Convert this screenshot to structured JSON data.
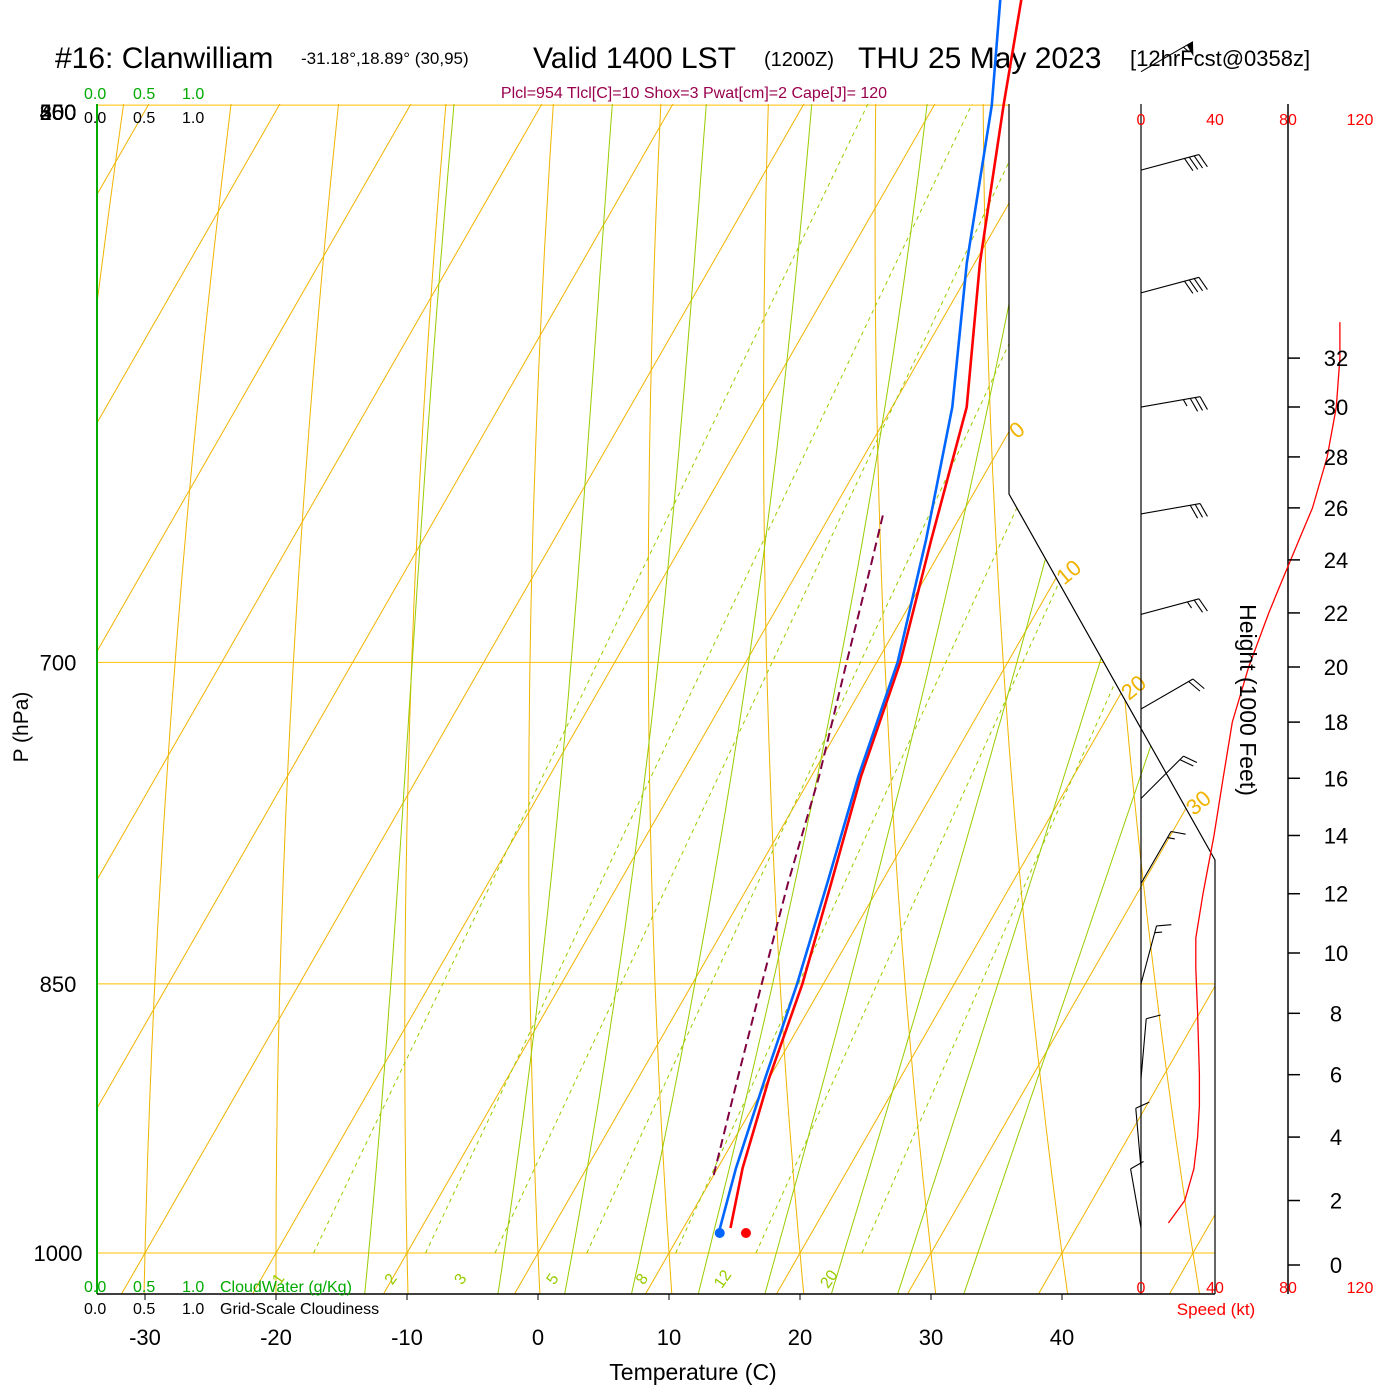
{
  "header": {
    "station": "#16: Clanwilliam",
    "coords": "-31.18°,18.89° (30,95)",
    "valid": "Valid 1400 LST",
    "zulu": "(1200Z)",
    "date": "THU 25 May 2023",
    "forecast": "[12hrFcst@0358z]"
  },
  "indices": "Plcl=954 Tlcl[C]=10 Shox=3 Pwat[cm]=2 Cape[J]= 120",
  "scales": {
    "cloudwater_ticks_top": [
      "0.0",
      "0.5",
      "1.0"
    ],
    "cloudiness_ticks_top": [
      "0.0",
      "0.5",
      "1.0"
    ],
    "cloudwater_ticks_bottom": [
      "0.0",
      "0.5",
      "1.0"
    ],
    "cloudiness_ticks_bottom": [
      "0.0",
      "0.5",
      "1.0"
    ],
    "cloudwater_label": "CloudWater (g/Kg)",
    "cloudiness_label": "Grid-Scale Cloudiness",
    "speed_ticks": [
      "0",
      "40",
      "80",
      "120"
    ],
    "speed_label": "Speed (kt)"
  },
  "colors": {
    "isobar": "#ffbf00",
    "isotherm": "#f0b400",
    "dry_adiabat": "#f0b400",
    "moist_adiabat": "#99cc00",
    "mixing_ratio": "#99cc00",
    "temperature": "#ff0000",
    "dewpoint": "#0066ff",
    "parcel": "#800040",
    "cloudwater": "#00aa00",
    "speed": "#ff0000",
    "indices": "#99004d"
  },
  "chart_data": {
    "type": "skew-t",
    "xlabel": "Temperature (C)",
    "ylabel": "P (hPa)",
    "y2label": "Height (1000 Feet)",
    "x_ticks": [
      -30,
      -20,
      -10,
      0,
      10,
      20,
      30,
      40
    ],
    "pressure_ticks": [
      250,
      300,
      400,
      500,
      700,
      850,
      1000
    ],
    "height_ticks_kft": [
      0,
      2,
      4,
      6,
      8,
      10,
      12,
      14,
      16,
      18,
      20,
      22,
      24,
      26,
      28,
      30,
      32
    ],
    "isotherm_labels": [
      -30,
      -20,
      -10,
      0,
      10,
      20,
      30
    ],
    "mixing_ratio_labels": [
      1,
      2,
      3,
      5,
      8,
      12,
      20
    ],
    "temperature_profile": [
      {
        "p": 985,
        "t": 13.6
      },
      {
        "p": 950,
        "t": 11.9
      },
      {
        "p": 900,
        "t": 10.0
      },
      {
        "p": 850,
        "t": 8.4
      },
      {
        "p": 800,
        "t": 6.2
      },
      {
        "p": 750,
        "t": 3.8
      },
      {
        "p": 700,
        "t": 1.8
      },
      {
        "p": 650,
        "t": -1.2
      },
      {
        "p": 600,
        "t": -4.3
      },
      {
        "p": 550,
        "t": -9.6
      },
      {
        "p": 500,
        "t": -14.7
      },
      {
        "p": 450,
        "t": -20.1
      },
      {
        "p": 420,
        "t": -23.5
      },
      {
        "p": 400,
        "t": -26.9
      },
      {
        "p": 385,
        "t": -29.3
      },
      {
        "p": 350,
        "t": -34.4
      },
      {
        "p": 300,
        "t": -43.8
      },
      {
        "p": 280,
        "t": -45.6
      },
      {
        "p": 260,
        "t": -47.4
      }
    ],
    "dewpoint_profile": [
      {
        "p": 988,
        "t": 13.0
      },
      {
        "p": 985,
        "t": 12.8
      },
      {
        "p": 950,
        "t": 11.4
      },
      {
        "p": 900,
        "t": 9.7
      },
      {
        "p": 850,
        "t": 8.0
      },
      {
        "p": 800,
        "t": 5.9
      },
      {
        "p": 750,
        "t": 3.6
      },
      {
        "p": 700,
        "t": 1.6
      },
      {
        "p": 650,
        "t": -1.6
      },
      {
        "p": 600,
        "t": -5.4
      },
      {
        "p": 550,
        "t": -10.6
      },
      {
        "p": 500,
        "t": -15.6
      },
      {
        "p": 460,
        "t": -20.8
      },
      {
        "p": 440,
        "t": -24.6
      },
      {
        "p": 420,
        "t": -27.4
      },
      {
        "p": 400,
        "t": -34.0
      },
      {
        "p": 385,
        "t": -39.0
      },
      {
        "p": 340,
        "t": -64.5
      },
      {
        "p": 300,
        "t": -64.0
      },
      {
        "p": 260,
        "t": -65.0
      }
    ],
    "parcel_profile": [
      {
        "p": 954,
        "t": 10.0
      },
      {
        "p": 900,
        "t": 7.6
      },
      {
        "p": 850,
        "t": 5.3
      },
      {
        "p": 800,
        "t": 2.9
      },
      {
        "p": 750,
        "t": 0.6
      },
      {
        "p": 700,
        "t": -2.3
      },
      {
        "p": 660,
        "t": -4.7
      },
      {
        "p": 640,
        "t": -6.0
      }
    ],
    "surface": {
      "p": 988,
      "t": 15.0,
      "td": 13.0
    },
    "wind_barbs": [
      {
        "p": 255,
        "speed": 120,
        "dir": 300
      },
      {
        "p": 270,
        "speed": 115,
        "dir": 300
      },
      {
        "p": 285,
        "speed": 115,
        "dir": 300
      },
      {
        "p": 300,
        "speed": 110,
        "dir": 300
      },
      {
        "p": 315,
        "speed": 105,
        "dir": 300
      },
      {
        "p": 335,
        "speed": 100,
        "dir": 300
      },
      {
        "p": 365,
        "speed": 90,
        "dir": 300
      },
      {
        "p": 400,
        "speed": 65,
        "dir": 300
      },
      {
        "p": 450,
        "speed": 60,
        "dir": 300
      },
      {
        "p": 490,
        "speed": 55,
        "dir": 300
      },
      {
        "p": 520,
        "speed": 40,
        "dir": 285
      },
      {
        "p": 560,
        "speed": 40,
        "dir": 285
      },
      {
        "p": 600,
        "speed": 35,
        "dir": 280
      },
      {
        "p": 640,
        "speed": 30,
        "dir": 280
      },
      {
        "p": 680,
        "speed": 25,
        "dir": 285
      },
      {
        "p": 720,
        "speed": 20,
        "dir": 300
      },
      {
        "p": 760,
        "speed": 20,
        "dir": 315
      },
      {
        "p": 800,
        "speed": 15,
        "dir": 330
      },
      {
        "p": 850,
        "speed": 15,
        "dir": 345
      },
      {
        "p": 900,
        "speed": 10,
        "dir": 355
      },
      {
        "p": 950,
        "speed": 10,
        "dir": 5
      },
      {
        "p": 985,
        "speed": 10,
        "dir": 10
      }
    ],
    "speed_profile": [
      {
        "h": 1.3,
        "v": 15
      },
      {
        "h": 2.0,
        "v": 24
      },
      {
        "h": 3.0,
        "v": 29
      },
      {
        "h": 4.0,
        "v": 31
      },
      {
        "h": 5.0,
        "v": 32
      },
      {
        "h": 6.0,
        "v": 32
      },
      {
        "h": 8.0,
        "v": 31
      },
      {
        "h": 9.5,
        "v": 30
      },
      {
        "h": 10.5,
        "v": 30
      },
      {
        "h": 12.0,
        "v": 34
      },
      {
        "h": 14.0,
        "v": 40
      },
      {
        "h": 16.0,
        "v": 45
      },
      {
        "h": 18.0,
        "v": 50
      },
      {
        "h": 20.0,
        "v": 59
      },
      {
        "h": 22.0,
        "v": 70
      },
      {
        "h": 23.0,
        "v": 76
      },
      {
        "h": 24.0,
        "v": 82
      },
      {
        "h": 25.0,
        "v": 88
      },
      {
        "h": 26.0,
        "v": 94
      },
      {
        "h": 28.0,
        "v": 102
      },
      {
        "h": 30.0,
        "v": 107
      },
      {
        "h": 32.0,
        "v": 109
      },
      {
        "h": 33.5,
        "v": 109
      }
    ]
  }
}
